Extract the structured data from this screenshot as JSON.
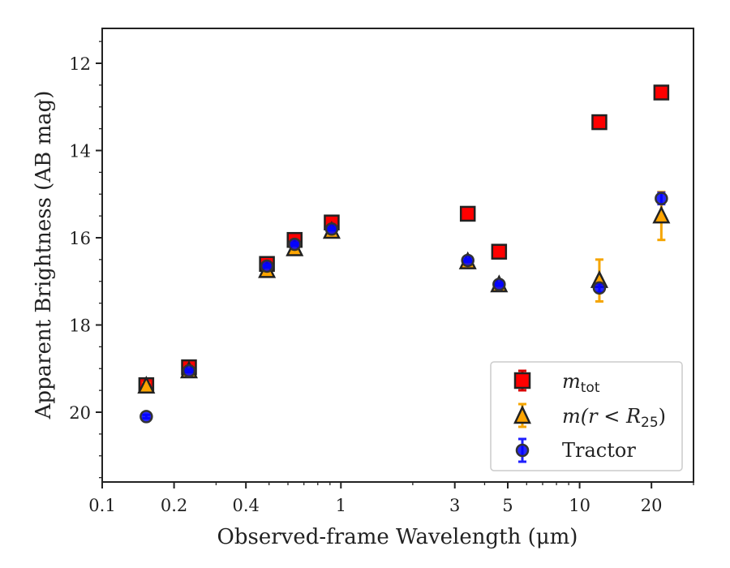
{
  "chart_data": {
    "type": "scatter",
    "xlabel": "Observed-frame Wavelength (μm)",
    "ylabel": "Apparent Brightness (AB mag)",
    "xscale": "log",
    "xlim": [
      0.1,
      30
    ],
    "ylim": [
      21.6,
      11.2
    ],
    "y_inverted": true,
    "x_ticks": [
      {
        "value": 0.1,
        "label": "0.1"
      },
      {
        "value": 0.2,
        "label": "0.2"
      },
      {
        "value": 0.4,
        "label": "0.4"
      },
      {
        "value": 1,
        "label": "1"
      },
      {
        "value": 3,
        "label": "3"
      },
      {
        "value": 5,
        "label": "5"
      },
      {
        "value": 10,
        "label": "10"
      },
      {
        "value": 20,
        "label": "20"
      }
    ],
    "y_ticks": [
      {
        "value": 12,
        "label": "12"
      },
      {
        "value": 14,
        "label": "14"
      },
      {
        "value": 16,
        "label": "16"
      },
      {
        "value": 18,
        "label": "18"
      },
      {
        "value": 20,
        "label": "20"
      }
    ],
    "grid": false,
    "legend_position": "bottom-right",
    "legend": {
      "mtot_main": "m",
      "mtot_sub": "tot",
      "mr_text": "m(r < R",
      "mr_sub": "25",
      "mr_close": ")",
      "tractor": "Tractor"
    },
    "series": [
      {
        "name": "mtot",
        "marker": "square",
        "color": "#ff0000",
        "edge": "#222222",
        "errcolor": "#d90000",
        "points": [
          {
            "x": 0.153,
            "y": 19.38,
            "err": 0.1
          },
          {
            "x": 0.231,
            "y": 18.97,
            "err": 0.06
          },
          {
            "x": 0.49,
            "y": 16.6,
            "err": 0.06
          },
          {
            "x": 0.64,
            "y": 16.05,
            "err": 0.05
          },
          {
            "x": 0.915,
            "y": 15.65,
            "err": 0.05
          },
          {
            "x": 3.4,
            "y": 15.45,
            "err": 0.03
          },
          {
            "x": 4.6,
            "y": 16.32,
            "err": 0.03
          },
          {
            "x": 12.1,
            "y": 13.35,
            "err": 0.03
          },
          {
            "x": 22.0,
            "y": 12.67,
            "err": 0.03
          }
        ]
      },
      {
        "name": "m(r<R25)",
        "marker": "triangle",
        "color": "#ffa500",
        "edge": "#222222",
        "errcolor": "#f5a500",
        "points": [
          {
            "x": 0.153,
            "y": 19.4,
            "err": 0.07
          },
          {
            "x": 0.231,
            "y": 19.05,
            "err": 0.05
          },
          {
            "x": 0.49,
            "y": 16.75,
            "err": 0.04
          },
          {
            "x": 0.64,
            "y": 16.25,
            "err": 0.04
          },
          {
            "x": 0.915,
            "y": 15.85,
            "err": 0.04
          },
          {
            "x": 3.4,
            "y": 16.55,
            "err": 0.04
          },
          {
            "x": 4.6,
            "y": 17.08,
            "err": 0.05
          },
          {
            "x": 12.1,
            "y": 16.98,
            "err": 0.48
          },
          {
            "x": 22.0,
            "y": 15.5,
            "err": 0.55
          }
        ]
      },
      {
        "name": "Tractor",
        "marker": "circle",
        "color": "#0000ff",
        "edge": "#333333",
        "errcolor": "#1f1fff",
        "points": [
          {
            "x": 0.153,
            "y": 20.1,
            "err": 0.04
          },
          {
            "x": 0.231,
            "y": 19.05,
            "err": 0.03
          },
          {
            "x": 0.49,
            "y": 16.65,
            "err": 0.03
          },
          {
            "x": 0.64,
            "y": 16.15,
            "err": 0.03
          },
          {
            "x": 0.915,
            "y": 15.8,
            "err": 0.03
          },
          {
            "x": 3.4,
            "y": 16.52,
            "err": 0.03
          },
          {
            "x": 4.6,
            "y": 17.07,
            "err": 0.03
          },
          {
            "x": 12.1,
            "y": 17.15,
            "err": 0.1
          },
          {
            "x": 22.0,
            "y": 15.1,
            "err": 0.13
          }
        ]
      }
    ]
  }
}
